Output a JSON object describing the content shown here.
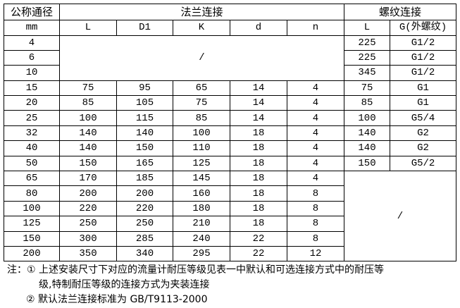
{
  "header": {
    "nominal_diameter": "公称通径",
    "flange_group": "法兰连接",
    "thread_group": "螺纹连接",
    "unit": "mm",
    "flange_cols": [
      "L",
      "D1",
      "K",
      "d",
      "n"
    ],
    "thread_cols": [
      "L",
      "G(外螺纹)"
    ]
  },
  "empty_marker": "/",
  "rows": [
    {
      "dn": "4",
      "flange": null,
      "thread": [
        "225",
        "G1/2"
      ]
    },
    {
      "dn": "6",
      "flange": null,
      "thread": [
        "225",
        "G1/2"
      ]
    },
    {
      "dn": "10",
      "flange": null,
      "thread": [
        "345",
        "G1/2"
      ]
    },
    {
      "dn": "15",
      "flange": [
        "75",
        "95",
        "65",
        "14",
        "4"
      ],
      "thread": [
        "75",
        "G1"
      ]
    },
    {
      "dn": "20",
      "flange": [
        "85",
        "105",
        "75",
        "14",
        "4"
      ],
      "thread": [
        "85",
        "G1"
      ]
    },
    {
      "dn": "25",
      "flange": [
        "100",
        "115",
        "85",
        "14",
        "4"
      ],
      "thread": [
        "100",
        "G5/4"
      ]
    },
    {
      "dn": "32",
      "flange": [
        "140",
        "140",
        "100",
        "18",
        "4"
      ],
      "thread": [
        "140",
        "G2"
      ]
    },
    {
      "dn": "40",
      "flange": [
        "140",
        "150",
        "110",
        "18",
        "4"
      ],
      "thread": [
        "140",
        "G2"
      ]
    },
    {
      "dn": "50",
      "flange": [
        "150",
        "165",
        "125",
        "18",
        "4"
      ],
      "thread": [
        "150",
        "G5/2"
      ]
    },
    {
      "dn": "65",
      "flange": [
        "170",
        "185",
        "145",
        "18",
        "4"
      ],
      "thread": null
    },
    {
      "dn": "80",
      "flange": [
        "200",
        "200",
        "160",
        "18",
        "8"
      ],
      "thread": null
    },
    {
      "dn": "100",
      "flange": [
        "220",
        "220",
        "180",
        "18",
        "8"
      ],
      "thread": null
    },
    {
      "dn": "125",
      "flange": [
        "250",
        "250",
        "210",
        "18",
        "8"
      ],
      "thread": null
    },
    {
      "dn": "150",
      "flange": [
        "300",
        "285",
        "240",
        "22",
        "8"
      ],
      "thread": null
    },
    {
      "dn": "200",
      "flange": [
        "350",
        "340",
        "295",
        "22",
        "12"
      ],
      "thread": null
    }
  ],
  "notes": {
    "prefix": "注：",
    "note1_line1": "① 上述安装尺寸下对应的流量计耐压等级见表一中默认和可选连接方式中的耐压等",
    "note1_line2": "级,特制耐压等级的连接方式为夹装连接",
    "note2": "② 默认法兰连接标准为 GB/T9113-2000"
  }
}
